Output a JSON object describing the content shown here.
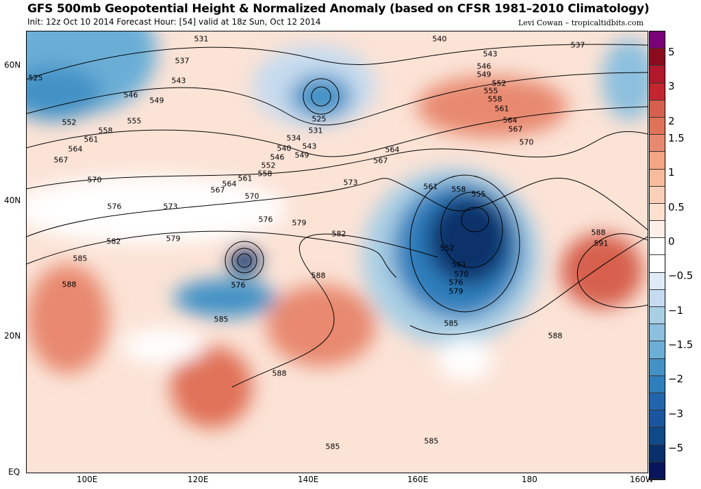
{
  "header": {
    "title": "GFS 500mb Geopotential Height & Normalized Anomaly (based on CFSR 1981–2010 Climatology)",
    "subtitle": "Init: 12z Oct 10 2014 Forecast Hour: [54] valid at 18z Sun, Oct 12 2014",
    "credit": "Levi Cowan – tropicaltidbits.com"
  },
  "axes": {
    "lat": [
      "60N",
      "40N",
      "20N",
      "EQ"
    ],
    "lon": [
      "100E",
      "120E",
      "140E",
      "160E",
      "180",
      "160W"
    ]
  },
  "colorbar": {
    "colors": [
      "#7a0177",
      "#8b0a1e",
      "#b2182b",
      "#c3262f",
      "#d6604d",
      "#e07258",
      "#e8896f",
      "#f4a582",
      "#f8bc9c",
      "#fbd0b9",
      "#fde0d0",
      "#fef0e8",
      "#ffffff",
      "#ffffff",
      "#deebf7",
      "#c6dbef",
      "#a9cfe5",
      "#8cc0de",
      "#6baed6",
      "#4292c6",
      "#2e7ebc",
      "#2166ac",
      "#1a55a0",
      "#0f4a88",
      "#08306b",
      "#08155a"
    ],
    "labels": [
      "5",
      "3",
      "2",
      "1.5",
      "1",
      "0.5",
      "0",
      "−0.5",
      "−1",
      "−1.5",
      "−2",
      "−3",
      "−5"
    ]
  },
  "contour_labels": [
    "531",
    "537",
    "543",
    "546",
    "549",
    "552",
    "555",
    "558",
    "561",
    "564",
    "567",
    "570",
    "576",
    "573",
    "582",
    "579",
    "585",
    "588",
    "525",
    "525",
    "531",
    "534",
    "540",
    "543",
    "546",
    "549",
    "552",
    "558",
    "561",
    "564",
    "567",
    "570",
    "576",
    "579",
    "573",
    "582",
    "564",
    "567",
    "540",
    "543",
    "546",
    "549",
    "552",
    "555",
    "558",
    "561",
    "564",
    "567",
    "570",
    "537",
    "561",
    "558",
    "555",
    "552",
    "561",
    "570",
    "576",
    "579",
    "585",
    "576",
    "585",
    "588",
    "588",
    "588",
    "588",
    "591",
    "585",
    "585"
  ]
}
